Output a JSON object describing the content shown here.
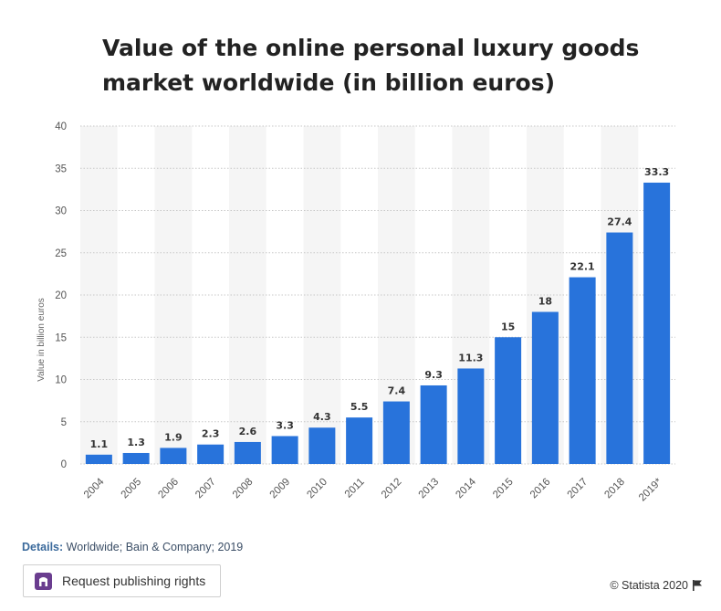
{
  "chart_data": {
    "type": "bar",
    "title": "Value of the online personal luxury goods market worldwide (in billion euros)",
    "xlabel": "",
    "ylabel": "Value in billion euros",
    "categories": [
      "2004",
      "2005",
      "2006",
      "2007",
      "2008",
      "2009",
      "2010",
      "2011",
      "2012",
      "2013",
      "2014",
      "2015",
      "2016",
      "2017",
      "2018",
      "2019*"
    ],
    "values": [
      1.1,
      1.3,
      1.9,
      2.3,
      2.6,
      3.3,
      4.3,
      5.5,
      7.4,
      9.3,
      11.3,
      15,
      18,
      22.1,
      27.4,
      33.3
    ],
    "ylim": [
      0,
      40
    ],
    "yticks": [
      0,
      5,
      10,
      15,
      20,
      25,
      30,
      35,
      40
    ],
    "grid": true,
    "legend": "none",
    "bar_color": "#2873db",
    "band_color": "#f5f5f5"
  },
  "footer": {
    "details_label": "Details:",
    "details_text": " Worldwide; Bain & Company; 2019",
    "button_label": "Request publishing rights",
    "copyright": "© Statista 2020"
  }
}
